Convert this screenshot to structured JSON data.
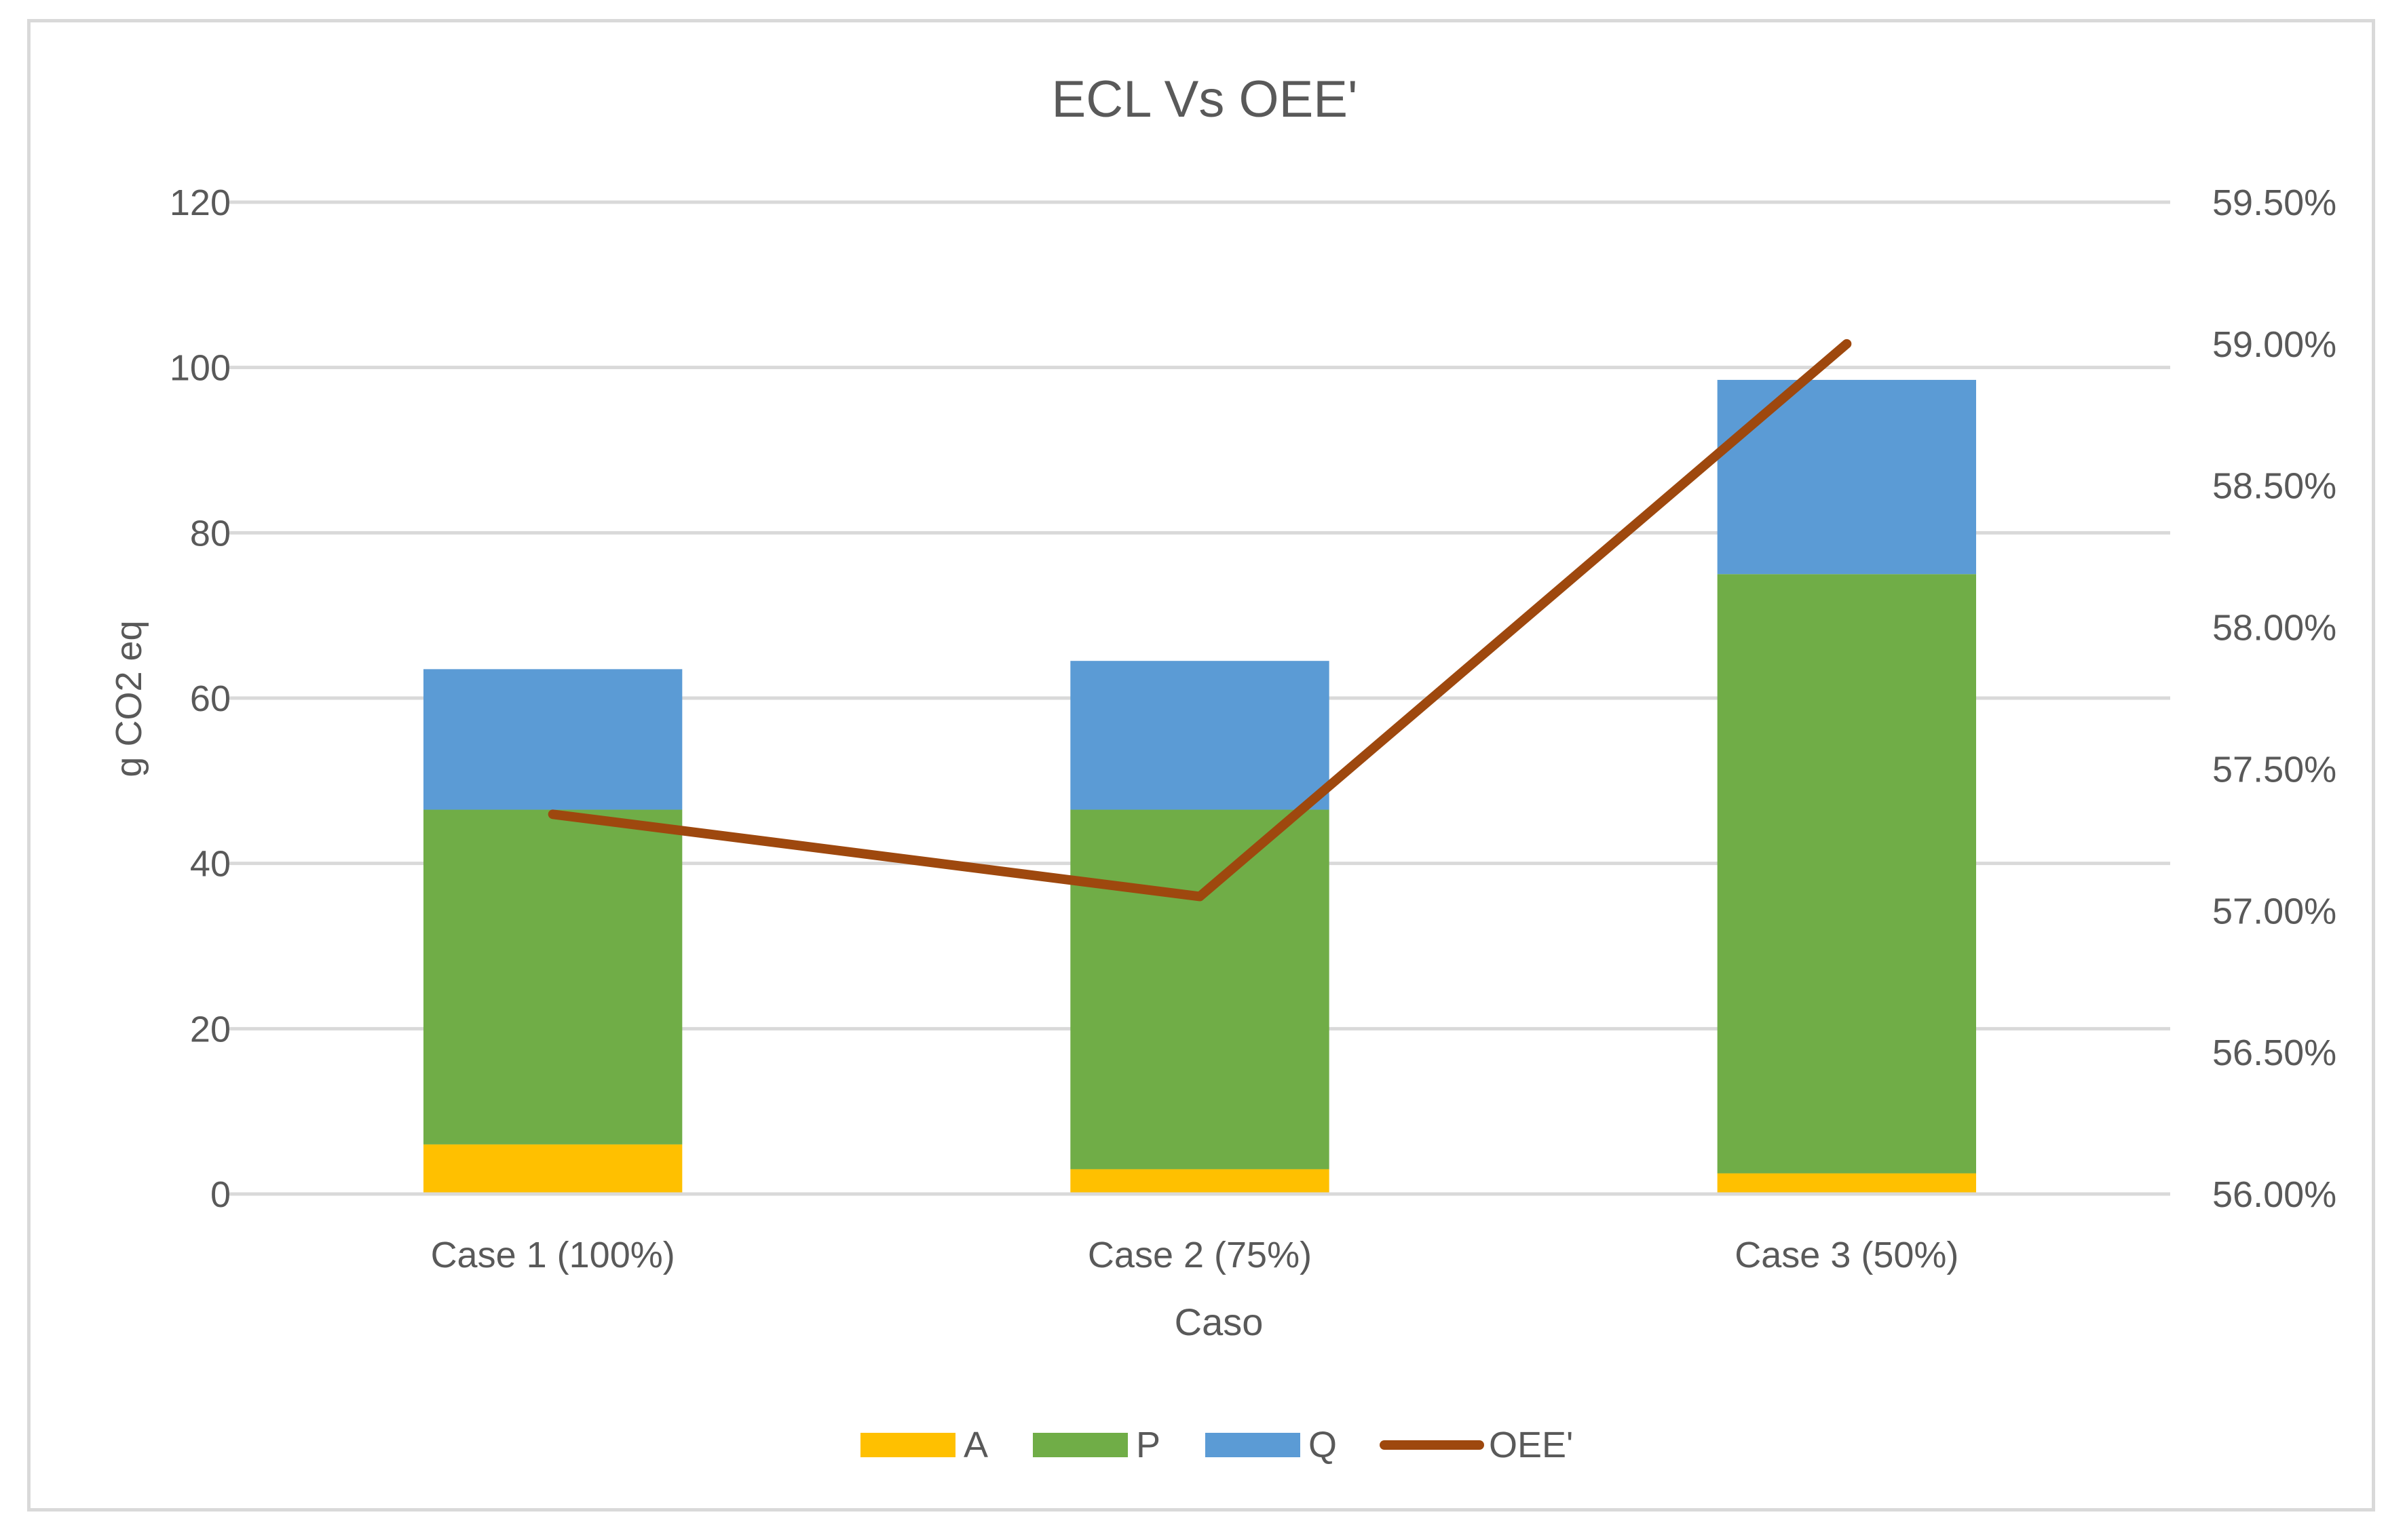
{
  "chart_data": {
    "type": "bar",
    "stacked": true,
    "title": "ECL Vs OEE'",
    "xlabel": "Caso",
    "ylabel": "g CO2 eq",
    "categories": [
      "Case 1 (100%)",
      "Case 2 (75%)",
      "Case 3 (50%)"
    ],
    "ylim": [
      0,
      120
    ],
    "yticks": [
      "0",
      "20",
      "40",
      "60",
      "80",
      "100",
      "120"
    ],
    "y2lim": [
      0.56,
      0.595
    ],
    "y2ticks": [
      "56.00%",
      "56.50%",
      "57.00%",
      "57.50%",
      "58.00%",
      "58.50%",
      "59.00%",
      "59.50%"
    ],
    "series": [
      {
        "name": "A",
        "kind": "bar",
        "color": "#ffc000",
        "values": [
          6,
          3,
          2.5
        ]
      },
      {
        "name": "P",
        "kind": "bar",
        "color": "#70ad47",
        "values": [
          40.5,
          43.5,
          72.5
        ]
      },
      {
        "name": "Q",
        "kind": "bar",
        "color": "#5b9bd5",
        "values": [
          17,
          18,
          23.5
        ]
      },
      {
        "name": "OEE'",
        "kind": "line",
        "axis": "right",
        "color": "#9e480e",
        "values": [
          0.5734,
          0.5705,
          0.59
        ]
      }
    ],
    "legend_position": "bottom",
    "grid": true
  }
}
